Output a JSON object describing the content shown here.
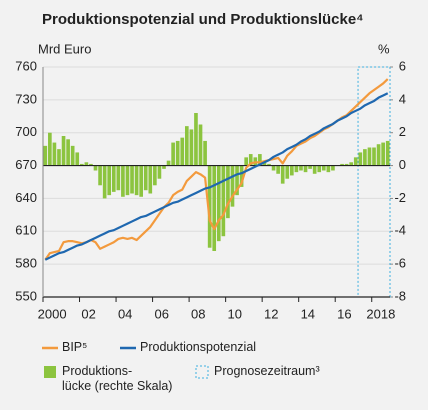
{
  "chart_data": {
    "type": "combo",
    "title": "Produktionspotenzial und Produktionslücke⁴",
    "y_label": "Mrd Euro",
    "y2_label": "%",
    "x": [
      2000.125,
      2000.375,
      2000.625,
      2000.875,
      2001.125,
      2001.375,
      2001.625,
      2001.875,
      2002.125,
      2002.375,
      2002.625,
      2002.875,
      2003.125,
      2003.375,
      2003.625,
      2003.875,
      2004.125,
      2004.375,
      2004.625,
      2004.875,
      2005.125,
      2005.375,
      2005.625,
      2005.875,
      2006.125,
      2006.375,
      2006.625,
      2006.875,
      2007.125,
      2007.375,
      2007.625,
      2007.875,
      2008.125,
      2008.375,
      2008.625,
      2008.875,
      2009.125,
      2009.375,
      2009.625,
      2009.875,
      2010.125,
      2010.375,
      2010.625,
      2010.875,
      2011.125,
      2011.375,
      2011.625,
      2011.875,
      2012.125,
      2012.375,
      2012.625,
      2012.875,
      2013.125,
      2013.375,
      2013.625,
      2013.875,
      2014.125,
      2014.375,
      2014.625,
      2014.875,
      2015.125,
      2015.375,
      2015.625,
      2015.875,
      2016.125,
      2016.375,
      2016.625,
      2016.875,
      2017.125,
      2017.375,
      2017.625,
      2017.875,
      2018.125,
      2018.375,
      2018.625,
      2018.875
    ],
    "series": [
      {
        "name": "Produktions-\nlücke (rechte Skala)",
        "type": "bar",
        "axis": "y2",
        "color": "#8cc43f",
        "values": [
          1.2,
          2.0,
          1.4,
          1.0,
          1.8,
          1.6,
          1.2,
          0.8,
          0.1,
          0.2,
          0.1,
          -0.3,
          -1.2,
          -2.0,
          -1.8,
          -1.6,
          -1.5,
          -1.9,
          -1.8,
          -1.7,
          -1.8,
          -1.9,
          -1.5,
          -1.7,
          -1.2,
          -0.8,
          -0.2,
          0.3,
          1.4,
          1.5,
          1.7,
          2.4,
          2.2,
          3.2,
          2.5,
          1.5,
          -5.0,
          -5.2,
          -4.6,
          -4.3,
          -3.2,
          -2.5,
          -1.8,
          -1.3,
          0.5,
          0.7,
          0.5,
          0.7,
          0.3,
          0.1,
          -0.3,
          -0.5,
          -1.1,
          -0.8,
          -0.6,
          -0.4,
          -0.3,
          -0.4,
          -0.2,
          -0.5,
          -0.4,
          -0.3,
          -0.4,
          -0.3,
          0,
          0.1,
          0.1,
          0.2,
          0.5,
          0.8,
          1.0,
          1.1,
          1.1,
          1.3,
          1.4,
          1.5
        ]
      },
      {
        "name": "BIP⁵",
        "type": "line",
        "color": "#f39a3d",
        "values": [
          584,
          590,
          591,
          592,
          600,
          601,
          601,
          600,
          599,
          600,
          602,
          600,
          594,
          596,
          598,
          600,
          603,
          604,
          603,
          604,
          602,
          606,
          610,
          614,
          620,
          626,
          632,
          636,
          643,
          646,
          648,
          656,
          660,
          664,
          662,
          659,
          620,
          612,
          620,
          625,
          635,
          642,
          648,
          654,
          668,
          672,
          673,
          673,
          674,
          675,
          676,
          677,
          672,
          679,
          683,
          688,
          690,
          692,
          695,
          697,
          700,
          703,
          705,
          708,
          711,
          714,
          716,
          720,
          724,
          728,
          732,
          736,
          739,
          742,
          745,
          749
        ]
      },
      {
        "name": "Produktionspotenzial",
        "type": "line",
        "color": "#1f68b0",
        "values": [
          584,
          586,
          588,
          590,
          591,
          593,
          595,
          597,
          598,
          600,
          602,
          604,
          606,
          608,
          610,
          611,
          613,
          615,
          617,
          619,
          621,
          623,
          624,
          626,
          628,
          630,
          632,
          634,
          636,
          637,
          639,
          641,
          643,
          645,
          647,
          649,
          650,
          652,
          654,
          656,
          658,
          660,
          662,
          663,
          665,
          667,
          669,
          671,
          673,
          675,
          678,
          680,
          682,
          685,
          687,
          689,
          692,
          694,
          697,
          699,
          701,
          704,
          706,
          708,
          711,
          713,
          715,
          718,
          720,
          722,
          725,
          727,
          729,
          732,
          734,
          736
        ]
      }
    ],
    "forecast": {
      "name": "Prognosezeitraum³",
      "range": [
        2017.25,
        2019
      ],
      "color": "#3fb0e0"
    },
    "xlim": [
      2000,
      2019
    ],
    "xticks": [
      {
        "value": 2000,
        "label": "2000"
      },
      {
        "value": 2002,
        "label": "02"
      },
      {
        "value": 2004,
        "label": "04"
      },
      {
        "value": 2006,
        "label": "06"
      },
      {
        "value": 2008,
        "label": "08"
      },
      {
        "value": 2010,
        "label": "10"
      },
      {
        "value": 2012,
        "label": "12"
      },
      {
        "value": 2014,
        "label": "14"
      },
      {
        "value": 2016,
        "label": "16"
      },
      {
        "value": 2018,
        "label": "2018"
      }
    ],
    "ylim": [
      550,
      760
    ],
    "yticks": [
      550,
      580,
      610,
      640,
      670,
      700,
      730,
      760
    ],
    "y2lim": [
      -8,
      6
    ],
    "y2ticks": [
      -8,
      -6,
      -4,
      -2,
      0,
      2,
      4,
      6
    ],
    "grid": true
  }
}
